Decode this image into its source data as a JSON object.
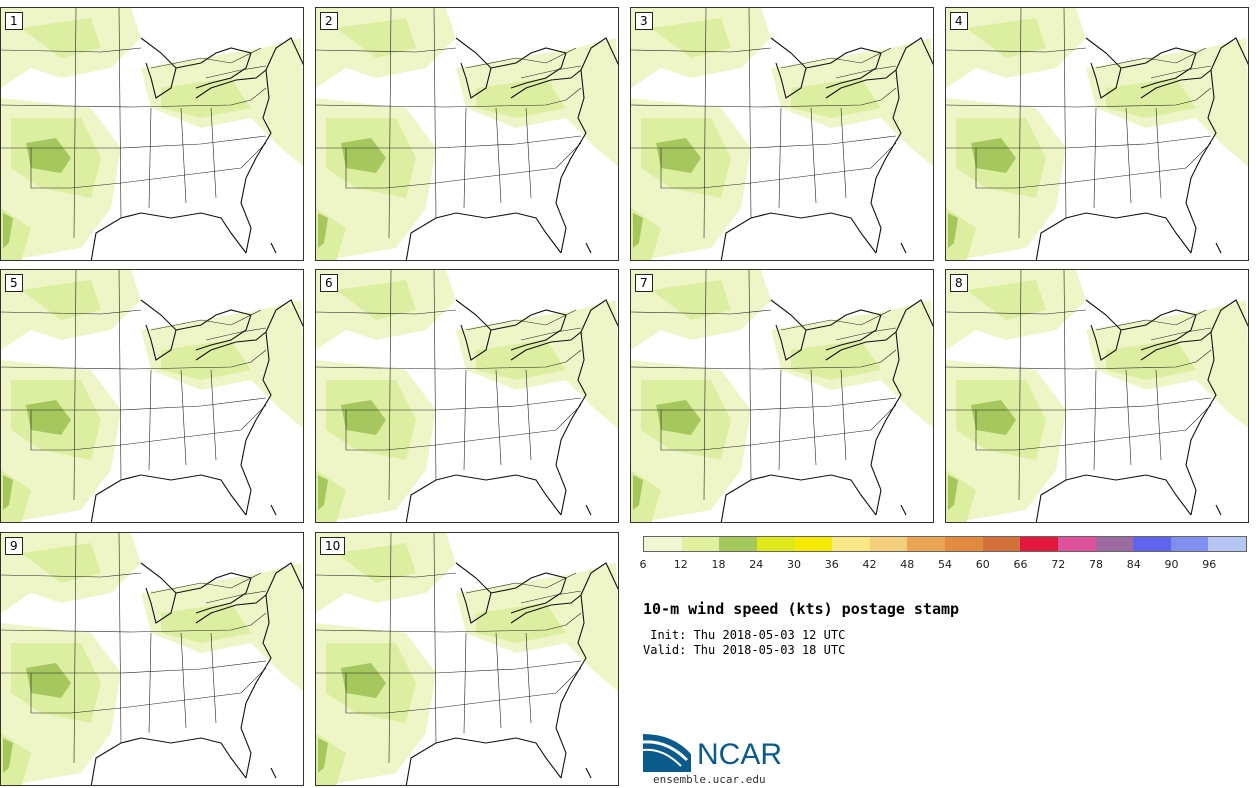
{
  "panels": [
    {
      "label": "1"
    },
    {
      "label": "2"
    },
    {
      "label": "3"
    },
    {
      "label": "4"
    },
    {
      "label": "5"
    },
    {
      "label": "6"
    },
    {
      "label": "7"
    },
    {
      "label": "8"
    },
    {
      "label": "9"
    },
    {
      "label": "10"
    }
  ],
  "colorbar": {
    "colors": [
      "#f1f7d0",
      "#e0f09c",
      "#a6c65e",
      "#dfe81c",
      "#f6e800",
      "#fde886",
      "#f3ce7d",
      "#eba451",
      "#e48a3f",
      "#d4703a",
      "#e2183b",
      "#e0519d",
      "#9a6aa0",
      "#6064ef",
      "#8090f2",
      "#b6c6f6"
    ],
    "ticks": [
      "6",
      "12",
      "18",
      "24",
      "30",
      "36",
      "42",
      "48",
      "54",
      "60",
      "66",
      "72",
      "78",
      "84",
      "90",
      "96"
    ]
  },
  "title": "10-m wind speed (kts) postage stamp",
  "init_text": " Init: Thu 2018-05-03 12 UTC",
  "valid_text": "Valid: Thu 2018-05-03 18 UTC",
  "logo": {
    "name": "NCAR",
    "url": "ensemble.ucar.edu"
  },
  "map_fill": {
    "light": "#eef6c8",
    "mid": "#dcefa0",
    "dark": "#a6c65e"
  }
}
